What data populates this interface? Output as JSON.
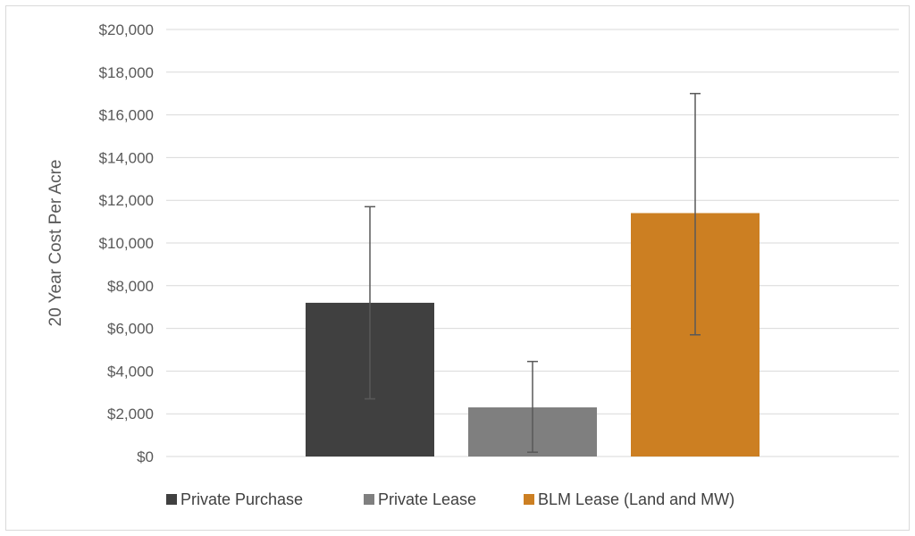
{
  "chart_data": {
    "type": "bar",
    "title": "",
    "xlabel": "",
    "ylabel": "20 Year Cost Per Acre",
    "ylim": [
      0,
      20000
    ],
    "ytick_step": 2000,
    "ytick_labels": [
      "$0",
      "$2,000",
      "$4,000",
      "$6,000",
      "$8,000",
      "$10,000",
      "$12,000",
      "$14,000",
      "$16,000",
      "$18,000",
      "$20,000"
    ],
    "grid": true,
    "legend_position": "bottom",
    "categories": [
      ""
    ],
    "series": [
      {
        "name": "Private Purchase",
        "values": [
          7200
        ],
        "error_low": [
          2700
        ],
        "error_high": [
          11700
        ],
        "color": "#404040"
      },
      {
        "name": "Private Lease",
        "values": [
          2300
        ],
        "error_low": [
          200
        ],
        "error_high": [
          4450
        ],
        "color": "#7f7f7f"
      },
      {
        "name": "BLM Lease (Land and MW)",
        "values": [
          11400
        ],
        "error_low": [
          5700
        ],
        "error_high": [
          17000
        ],
        "color": "#cc7f22"
      }
    ]
  }
}
